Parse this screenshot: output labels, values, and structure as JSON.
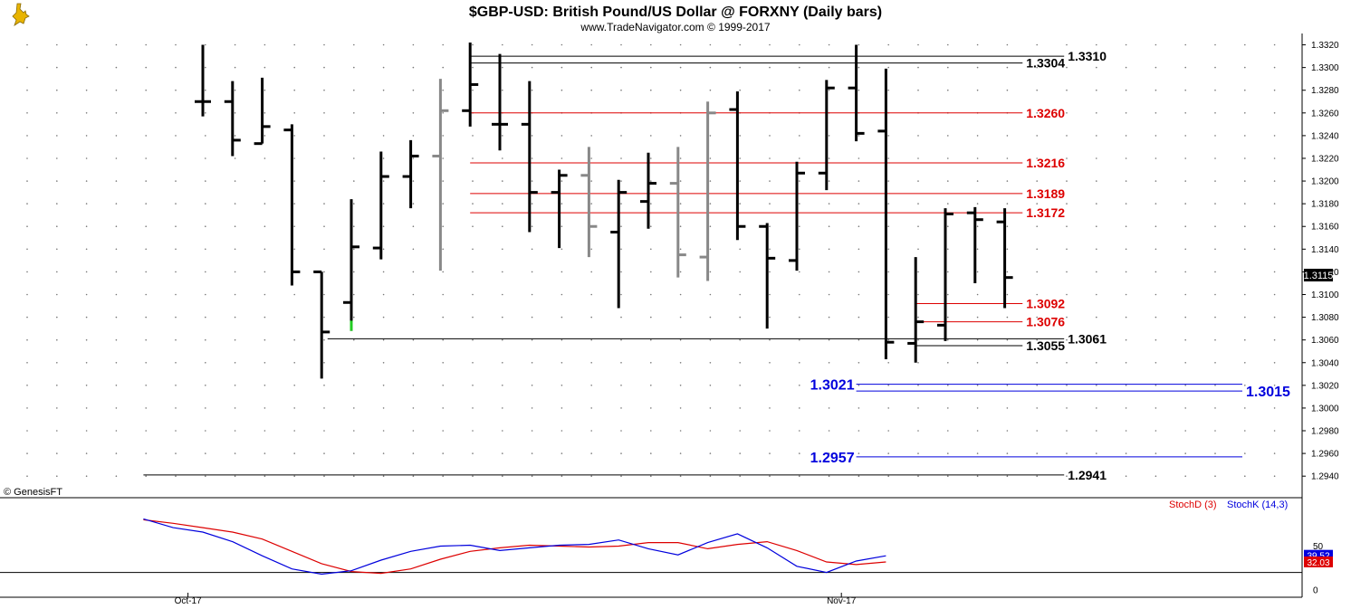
{
  "window": {
    "title": "$GBP-USD:  British Pound/US Dollar @ FORXNY  (Daily bars)",
    "subtitle": "www.TradeNavigator.com © 1999-2017",
    "logo_icon": "trade-navigator-logo-icon"
  },
  "indicator_panel": {
    "source_label": "© GenesisFT",
    "stochd_label": "StochD (3)",
    "stochk_label": "StochK (14,3)"
  },
  "chart_data": [
    {
      "type": "ohlc",
      "title": "$GBP-USD:  British Pound/US Dollar @ FORXNY  (Daily bars)",
      "ylim": [
        1.2925,
        1.333
      ],
      "y_ticks": [
        "1.2940",
        "1.2960",
        "1.2980",
        "1.3000",
        "1.3020",
        "1.3040",
        "1.3060",
        "1.3080",
        "1.3100",
        "1.3120",
        "1.3140",
        "1.3160",
        "1.3180",
        "1.3200",
        "1.3220",
        "1.3240",
        "1.3260",
        "1.3280",
        "1.3300",
        "1.3320"
      ],
      "x_labels": [
        {
          "label": "Oct-17",
          "bar": -0.5
        },
        {
          "label": "Nov-17",
          "bar": 21.5
        }
      ],
      "last_price": "1.3115",
      "bars": [
        {
          "open": 1.327,
          "high": 1.332,
          "low": 1.3257,
          "close": 1.327,
          "color": "#000000"
        },
        {
          "open": 1.327,
          "high": 1.3288,
          "low": 1.3222,
          "close": 1.3236,
          "color": "#000000"
        },
        {
          "open": 1.3233,
          "high": 1.3291,
          "low": 1.3233,
          "close": 1.3248,
          "color": "#000000"
        },
        {
          "open": 1.3245,
          "high": 1.325,
          "low": 1.3108,
          "close": 1.312,
          "color": "#000000"
        },
        {
          "open": 1.312,
          "high": 1.312,
          "low": 1.3026,
          "close": 1.3067,
          "color": "#000000"
        },
        {
          "open": 1.3093,
          "high": 1.3184,
          "low": 1.3068,
          "close": 1.3142,
          "color": "#000000"
        },
        {
          "open": 1.3141,
          "high": 1.3226,
          "low": 1.3131,
          "close": 1.3204,
          "color": "#000000"
        },
        {
          "open": 1.3204,
          "high": 1.3236,
          "low": 1.3176,
          "close": 1.3222,
          "color": "#000000"
        },
        {
          "open": 1.3222,
          "high": 1.329,
          "low": 1.3121,
          "close": 1.3262,
          "color": "#888888"
        },
        {
          "open": 1.3262,
          "high": 1.3322,
          "low": 1.3248,
          "close": 1.3285,
          "color": "#000000"
        },
        {
          "open": 1.325,
          "high": 1.3312,
          "low": 1.3227,
          "close": 1.325,
          "color": "#000000"
        },
        {
          "open": 1.325,
          "high": 1.3288,
          "low": 1.3155,
          "close": 1.319,
          "color": "#000000"
        },
        {
          "open": 1.319,
          "high": 1.321,
          "low": 1.3141,
          "close": 1.3205,
          "color": "#000000"
        },
        {
          "open": 1.3205,
          "high": 1.323,
          "low": 1.3133,
          "close": 1.316,
          "color": "#888888"
        },
        {
          "open": 1.3155,
          "high": 1.3201,
          "low": 1.3088,
          "close": 1.319,
          "color": "#000000"
        },
        {
          "open": 1.3182,
          "high": 1.3225,
          "low": 1.3158,
          "close": 1.3198,
          "color": "#000000"
        },
        {
          "open": 1.3198,
          "high": 1.323,
          "low": 1.3115,
          "close": 1.3135,
          "color": "#888888"
        },
        {
          "open": 1.3133,
          "high": 1.327,
          "low": 1.3112,
          "close": 1.326,
          "color": "#888888"
        },
        {
          "open": 1.3263,
          "high": 1.3279,
          "low": 1.3148,
          "close": 1.316,
          "color": "#000000"
        },
        {
          "open": 1.316,
          "high": 1.3163,
          "low": 1.307,
          "close": 1.3132,
          "color": "#000000"
        },
        {
          "open": 1.313,
          "high": 1.3217,
          "low": 1.3121,
          "close": 1.3207,
          "color": "#000000"
        },
        {
          "open": 1.3207,
          "high": 1.3289,
          "low": 1.3192,
          "close": 1.3282,
          "color": "#000000"
        },
        {
          "open": 1.3282,
          "high": 1.332,
          "low": 1.3235,
          "close": 1.3242,
          "color": "#000000"
        },
        {
          "open": 1.3244,
          "high": 1.3299,
          "low": 1.3043,
          "close": 1.3058,
          "color": "#000000"
        },
        {
          "open": 1.3057,
          "high": 1.3133,
          "low": 1.304,
          "close": 1.3076,
          "color": "#000000"
        },
        {
          "open": 1.3073,
          "high": 1.3176,
          "low": 1.3059,
          "close": 1.3171,
          "color": "#000000"
        },
        {
          "open": 1.3172,
          "high": 1.3177,
          "low": 1.311,
          "close": 1.3166,
          "color": "#000000"
        },
        {
          "open": 1.3164,
          "high": 1.3176,
          "low": 1.3088,
          "close": 1.3115,
          "color": "#000000"
        }
      ],
      "special_marks": [
        {
          "bar": 5,
          "from": 1.3068,
          "to": 1.3077,
          "color": "#22cc22"
        }
      ],
      "levels": [
        {
          "value": 1.331,
          "label": "1.3310",
          "color": "#000000",
          "from_bar": 9,
          "to_bar": 29,
          "label_side": "right-far"
        },
        {
          "value": 1.3304,
          "label": "1.3304",
          "color": "#000000",
          "from_bar": 9,
          "to_bar": 27.6,
          "label_side": "right"
        },
        {
          "value": 1.326,
          "label": "1.3260",
          "color": "#dd0000",
          "from_bar": 9,
          "to_bar": 27.6,
          "label_side": "right"
        },
        {
          "value": 1.3216,
          "label": "1.3216",
          "color": "#dd0000",
          "from_bar": 9,
          "to_bar": 27.6,
          "label_side": "right"
        },
        {
          "value": 1.3189,
          "label": "1.3189",
          "color": "#dd0000",
          "from_bar": 9,
          "to_bar": 27.6,
          "label_side": "right"
        },
        {
          "value": 1.3172,
          "label": "1.3172",
          "color": "#dd0000",
          "from_bar": 9,
          "to_bar": 27.6,
          "label_side": "right"
        },
        {
          "value": 1.3092,
          "label": "1.3092",
          "color": "#dd0000",
          "from_bar": 24,
          "to_bar": 27.6,
          "label_side": "right"
        },
        {
          "value": 1.3076,
          "label": "1.3076",
          "color": "#dd0000",
          "from_bar": 24,
          "to_bar": 27.6,
          "label_side": "right"
        },
        {
          "value": 1.3061,
          "label": "1.3061",
          "color": "#000000",
          "from_bar": 4.2,
          "to_bar": 29,
          "label_side": "right-far"
        },
        {
          "value": 1.3055,
          "label": "1.3055",
          "color": "#000000",
          "from_bar": 24,
          "to_bar": 27.6,
          "label_side": "right"
        },
        {
          "value": 1.3021,
          "label": "1.3021",
          "color": "#0000dd",
          "from_bar": 22,
          "to_bar": 35,
          "label_side": "left"
        },
        {
          "value": 1.3015,
          "label": "1.3015",
          "color": "#0000dd",
          "from_bar": 22,
          "to_bar": 35,
          "label_side": "right-end"
        },
        {
          "value": 1.2957,
          "label": "1.2957",
          "color": "#0000dd",
          "from_bar": 22,
          "to_bar": 35,
          "label_side": "left"
        },
        {
          "value": 1.2941,
          "label": "1.2941",
          "color": "#000000",
          "from_bar": -2,
          "to_bar": 29,
          "label_side": "right-far"
        }
      ]
    },
    {
      "type": "line",
      "title": "",
      "ylim": [
        0,
        100
      ],
      "y_ticks": [
        "0",
        "50"
      ],
      "reference_line": 20,
      "series": [
        {
          "name": "StochD (3)",
          "color": "#dd0000",
          "values": [
            80,
            76,
            71,
            66,
            58,
            44,
            30,
            21,
            19,
            24,
            35,
            44,
            48,
            51,
            50,
            49,
            50,
            54,
            54,
            47,
            52,
            55,
            45,
            32,
            29,
            32
          ]
        },
        {
          "name": "StochK (14,3)",
          "color": "#0000dd",
          "values": [
            81,
            71,
            66,
            55,
            39,
            24,
            18,
            22,
            34,
            44,
            50,
            51,
            45,
            48,
            51,
            52,
            57,
            47,
            40,
            54,
            64,
            48,
            27,
            20,
            33,
            39
          ]
        }
      ],
      "series_start_bar": -2,
      "last_values": [
        {
          "value": "39.52",
          "color": "#0000dd"
        },
        {
          "value": "32.03",
          "color": "#dd0000"
        }
      ]
    }
  ]
}
